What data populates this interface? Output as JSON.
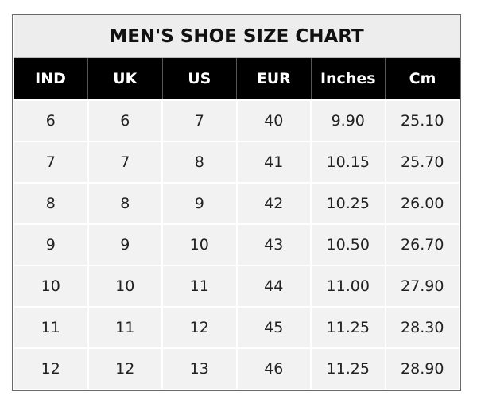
{
  "table": {
    "title": "MEN'S SHOE SIZE CHART",
    "header": [
      "IND",
      "UK",
      "US",
      "EUR",
      "Inches",
      "Cm"
    ],
    "rows": [
      [
        "6",
        "6",
        "7",
        "40",
        "9.90",
        "25.10"
      ],
      [
        "7",
        "7",
        "8",
        "41",
        "10.15",
        "25.70"
      ],
      [
        "8",
        "8",
        "9",
        "42",
        "10.25",
        "26.00"
      ],
      [
        "9",
        "9",
        "10",
        "43",
        "10.50",
        "26.70"
      ],
      [
        "10",
        "10",
        "11",
        "44",
        "11.00",
        "27.90"
      ],
      [
        "11",
        "11",
        "12",
        "45",
        "11.25",
        "28.30"
      ],
      [
        "12",
        "12",
        "13",
        "46",
        "11.25",
        "28.90"
      ]
    ]
  }
}
